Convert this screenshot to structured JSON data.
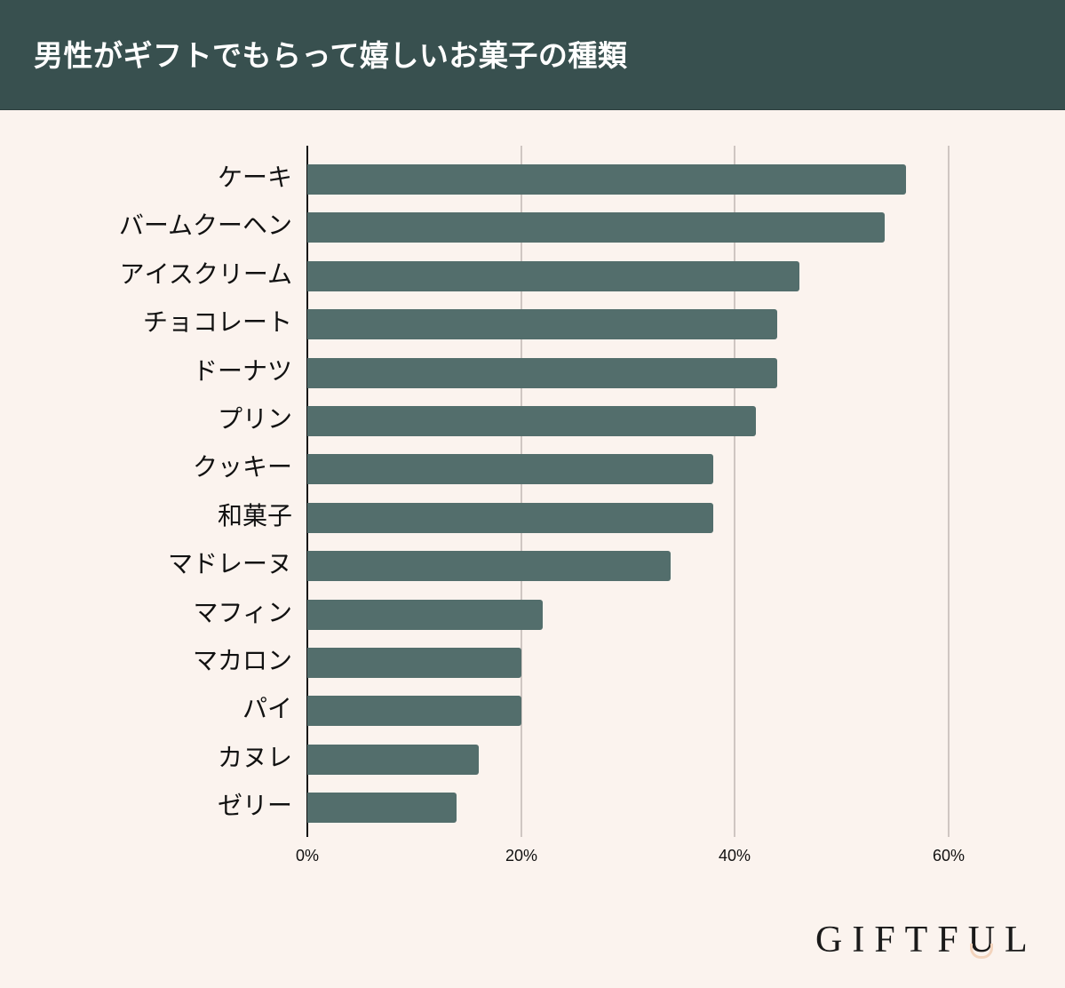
{
  "header": {
    "title": "男性がギフトでもらって嬉しいお菓子の種類"
  },
  "logo": {
    "text_before": "GIFTF",
    "text_u": "U",
    "text_after": "L",
    "accent_color": "#f3d4bd"
  },
  "colors": {
    "header_bg": "#38504f",
    "bar": "#536e6c",
    "background": "#fbf3ee",
    "grid": "#cfc6c2"
  },
  "axis": {
    "ticks": [
      "0%",
      "20%",
      "40%",
      "60%"
    ]
  },
  "chart_data": {
    "type": "bar",
    "orientation": "horizontal",
    "title": "男性がギフトでもらって嬉しいお菓子の種類",
    "xlabel": "",
    "ylabel": "",
    "xlim": [
      0,
      60
    ],
    "x_ticks": [
      "0%",
      "20%",
      "40%",
      "60%"
    ],
    "grid": true,
    "legend": "none",
    "categories": [
      "ケーキ",
      "バームクーヘン",
      "アイスクリーム",
      "チョコレート",
      "ドーナツ",
      "プリン",
      "クッキー",
      "和菓子",
      "マドレーヌ",
      "マフィン",
      "マカロン",
      "パイ",
      "カヌレ",
      "ゼリー"
    ],
    "values": [
      56,
      54,
      46,
      44,
      44,
      42,
      38,
      38,
      34,
      22,
      20,
      20,
      16,
      14
    ],
    "unit": "%"
  }
}
